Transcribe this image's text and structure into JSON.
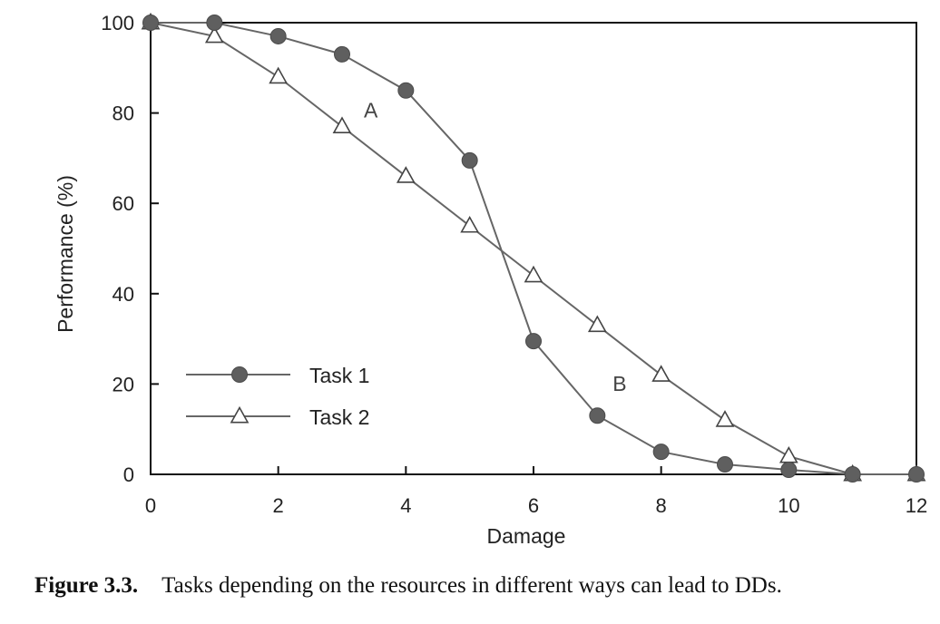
{
  "chart_data": {
    "type": "line",
    "xlabel": "Damage",
    "ylabel": "Performance (%)",
    "xlim": [
      0,
      12
    ],
    "ylim": [
      0,
      100
    ],
    "xticks": [
      0,
      2,
      4,
      6,
      8,
      10,
      12
    ],
    "yticks": [
      0,
      20,
      40,
      60,
      80,
      100
    ],
    "grid": false,
    "legend": "lower-left",
    "series": [
      {
        "name": "Task 1",
        "marker": "filled-circle",
        "color": "#666666",
        "x": [
          0,
          1,
          2,
          3,
          4,
          5,
          6,
          7,
          8,
          9,
          10,
          11,
          12
        ],
        "y": [
          100,
          100,
          97,
          93,
          85,
          69.5,
          29.5,
          13,
          5,
          2.2,
          1,
          0,
          0
        ]
      },
      {
        "name": "Task 2",
        "marker": "open-triangle",
        "color": "#666666",
        "x": [
          0,
          1,
          2,
          3,
          4,
          5,
          6,
          7,
          8,
          9,
          10,
          11,
          12
        ],
        "y": [
          100,
          97,
          88,
          77,
          66,
          55,
          44,
          33,
          22,
          12,
          4,
          0,
          0
        ]
      }
    ],
    "annotations": [
      {
        "text": "A",
        "x": 3.45,
        "y": 79
      },
      {
        "text": "B",
        "x": 7.35,
        "y": 18.5
      }
    ]
  },
  "caption": {
    "figure_label": "Figure 3.3.",
    "text": "Tasks depending on the resources in different ways can lead to DDs."
  }
}
